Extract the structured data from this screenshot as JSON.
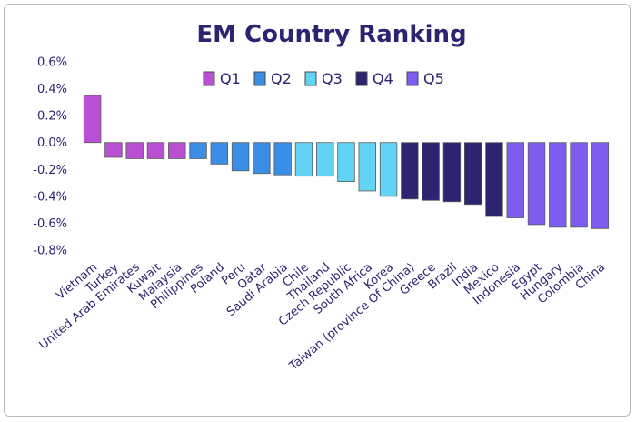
{
  "chart_data": {
    "type": "bar",
    "title": "EM Country Ranking",
    "xlabel": "",
    "ylabel": "",
    "ylim": [
      -0.8,
      0.6
    ],
    "yticks": [
      "0.6%",
      "0.4%",
      "0.2%",
      "0.0%",
      "-0.2%",
      "-0.4%",
      "-0.6%",
      "-0.8%"
    ],
    "ytick_values": [
      0.6,
      0.4,
      0.2,
      0.0,
      -0.2,
      -0.4,
      -0.6,
      -0.8
    ],
    "legend_position": "top-center",
    "grid": false,
    "legend": [
      {
        "name": "Q1",
        "color": "#b94fd1"
      },
      {
        "name": "Q2",
        "color": "#3a8ee6"
      },
      {
        "name": "Q3",
        "color": "#63d3f5"
      },
      {
        "name": "Q4",
        "color": "#2b2470"
      },
      {
        "name": "Q5",
        "color": "#7d5cf0"
      }
    ],
    "categories": [
      "Vietnam",
      "Turkey",
      "United Arab Emirates",
      "Kuwait",
      "Malaysia",
      "Philippines",
      "Poland",
      "Peru",
      "Qatar",
      "Saudi Arabia",
      "Chile",
      "Thailand",
      "Czech Republic",
      "South Africa",
      "Korea",
      "Taiwan (province Of China)",
      "Greece",
      "Brazil",
      "India",
      "Mexico",
      "Indonesia",
      "Egypt",
      "Hungary",
      "Colombia",
      "China"
    ],
    "values": [
      0.35,
      -0.11,
      -0.12,
      -0.12,
      -0.12,
      -0.12,
      -0.16,
      -0.21,
      -0.23,
      -0.24,
      -0.25,
      -0.25,
      -0.29,
      -0.36,
      -0.4,
      -0.42,
      -0.43,
      -0.44,
      -0.46,
      -0.55,
      -0.56,
      -0.61,
      -0.63,
      -0.63,
      -0.64
    ],
    "quintile": [
      "Q1",
      "Q1",
      "Q1",
      "Q1",
      "Q1",
      "Q2",
      "Q2",
      "Q2",
      "Q2",
      "Q2",
      "Q3",
      "Q3",
      "Q3",
      "Q3",
      "Q3",
      "Q4",
      "Q4",
      "Q4",
      "Q4",
      "Q4",
      "Q5",
      "Q5",
      "Q5",
      "Q5",
      "Q5"
    ]
  }
}
